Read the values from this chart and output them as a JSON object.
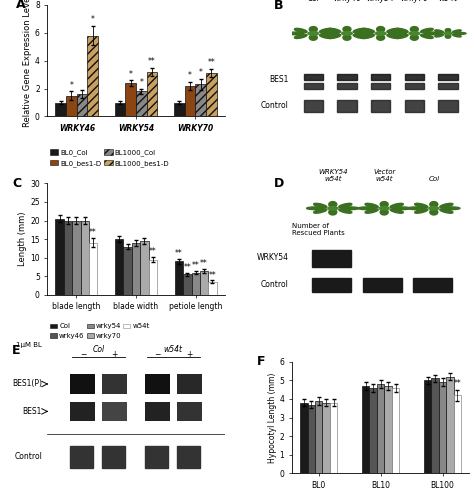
{
  "panel_A": {
    "groups": [
      "WRKY46",
      "WRKY54",
      "WRKY70"
    ],
    "bars": {
      "BL0_Col": [
        1.0,
        1.0,
        1.0
      ],
      "BL0_bes1D": [
        1.5,
        2.4,
        2.2
      ],
      "BL1000_Col": [
        1.6,
        1.8,
        2.3
      ],
      "BL1000_bes1D": [
        5.8,
        3.2,
        3.1
      ]
    },
    "errors": {
      "BL0_Col": [
        0.1,
        0.1,
        0.1
      ],
      "BL0_bes1D": [
        0.3,
        0.2,
        0.3
      ],
      "BL1000_Col": [
        0.3,
        0.2,
        0.4
      ],
      "BL1000_bes1D": [
        0.7,
        0.3,
        0.3
      ]
    },
    "colors": [
      "#1a1a1a",
      "#8B4513",
      "#888888",
      "#c8a060"
    ],
    "hatches": [
      "",
      "",
      "////",
      "////"
    ],
    "ylabel": "Relative Gene Expression Level",
    "ylim": [
      0,
      8
    ],
    "yticks": [
      0,
      2,
      4,
      6,
      8
    ],
    "legend_labels": [
      "BL0_Col",
      "BL0_bes1-D",
      "BL1000_Col",
      "BL1000_bes1-D"
    ]
  },
  "panel_C": {
    "groups": [
      "blade length",
      "blade width",
      "petiole length"
    ],
    "bars": {
      "Col": [
        20.5,
        15.0,
        9.0
      ],
      "wrky46": [
        20.0,
        13.0,
        5.5
      ],
      "wrky54": [
        20.0,
        14.0,
        6.0
      ],
      "wrky70": [
        20.0,
        14.5,
        6.5
      ],
      "w54t": [
        14.0,
        9.5,
        3.5
      ]
    },
    "errors": {
      "Col": [
        1.0,
        0.8,
        0.7
      ],
      "wrky46": [
        1.0,
        0.7,
        0.5
      ],
      "wrky54": [
        1.0,
        0.8,
        0.5
      ],
      "wrky70": [
        1.0,
        0.9,
        0.5
      ],
      "w54t": [
        1.2,
        0.6,
        0.4
      ]
    },
    "colors": [
      "#1a1a1a",
      "#555555",
      "#888888",
      "#aaaaaa",
      "#ffffff"
    ],
    "ylabel": "Length (mm)",
    "ylim": [
      0,
      30
    ],
    "yticks": [
      0,
      5,
      10,
      15,
      20,
      25,
      30
    ],
    "legend_labels": [
      "Col",
      "wrky46",
      "wrky54",
      "wrky70",
      "w54t"
    ]
  },
  "panel_F": {
    "groups": [
      "BL0",
      "BL10",
      "BL100"
    ],
    "bars": {
      "Col": [
        3.8,
        4.7,
        5.0
      ],
      "wrky46": [
        3.7,
        4.6,
        5.1
      ],
      "wrky54": [
        3.9,
        4.8,
        4.9
      ],
      "wrky70": [
        3.8,
        4.7,
        5.2
      ],
      "wrky54t": [
        3.8,
        4.6,
        4.2
      ]
    },
    "errors": {
      "Col": [
        0.2,
        0.2,
        0.2
      ],
      "wrky46": [
        0.2,
        0.2,
        0.2
      ],
      "wrky54": [
        0.2,
        0.2,
        0.2
      ],
      "wrky70": [
        0.2,
        0.2,
        0.2
      ],
      "wrky54t": [
        0.2,
        0.2,
        0.3
      ]
    },
    "colors": [
      "#1a1a1a",
      "#555555",
      "#888888",
      "#aaaaaa",
      "#ffffff"
    ],
    "ylabel": "Hypocotyl Length (mm)",
    "ylim": [
      0,
      6
    ],
    "yticks": [
      0,
      1,
      2,
      3,
      4,
      5,
      6
    ],
    "legend_labels": [
      "Col",
      "wrky46",
      "wrky54",
      "wrky70",
      "w54t"
    ]
  },
  "photo_bg": "#111111",
  "gel_bg": "#c0c0c0",
  "gel_band_dark": "#1a1a1a",
  "gel_band_mid": "#444444",
  "background_color": "#ffffff",
  "panel_labels_fontsize": 9,
  "axis_fontsize": 6,
  "tick_fontsize": 5.5,
  "legend_fontsize": 5
}
